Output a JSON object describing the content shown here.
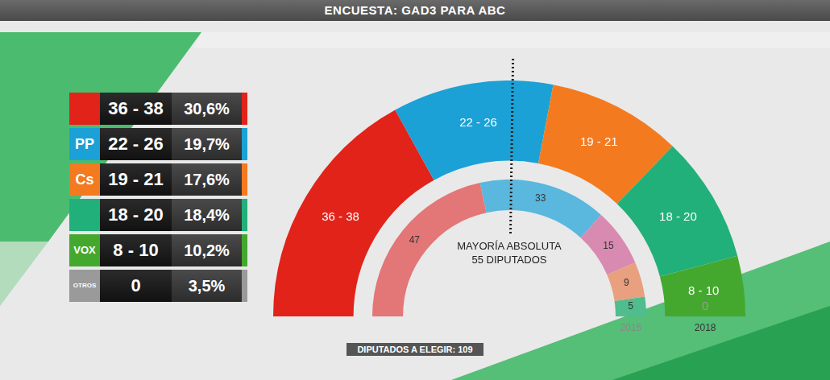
{
  "title": "ENCUESTA: GAD3 PARA ABC",
  "table": {
    "rows": [
      {
        "logo": null,
        "seats": "36 - 38",
        "percent": "30,6%",
        "color": "#e2231a"
      },
      {
        "logo": "PP",
        "seats": "22 - 26",
        "percent": "19,7%",
        "color": "#1ba1d6"
      },
      {
        "logo": "Cs",
        "seats": "19 - 21",
        "percent": "17,6%",
        "color": "#f47a20"
      },
      {
        "logo": null,
        "seats": "18 - 20",
        "percent": "18,4%",
        "color": "#22b07a"
      },
      {
        "logo": "VOX",
        "seats": "8 - 10",
        "percent": "10,2%",
        "color": "#45a82e"
      },
      {
        "logo": "OTROS",
        "seats": "0",
        "percent": "3,5%",
        "color": "#9a9a9a"
      }
    ]
  },
  "chart_data": {
    "type": "doughnut",
    "data_labels": true,
    "series": [
      {
        "name": "2015",
        "values": [
          47,
          33,
          15,
          9,
          5
        ],
        "colors": [
          "#e37676",
          "#5ab7dd",
          "#d98ab0",
          "#e9a07f",
          "#4fbd8e"
        ]
      },
      {
        "name": "2018",
        "low": [
          36,
          22,
          19,
          18,
          8,
          0
        ],
        "high": [
          38,
          26,
          21,
          20,
          10,
          0
        ],
        "value_labels": [
          "36 - 38",
          "22 - 26",
          "19 - 21",
          "18 - 20",
          "8 - 10",
          "0"
        ],
        "colors": [
          "#e2231a",
          "#1ba1d6",
          "#f47a20",
          "#22b07a",
          "#45a82e",
          "#9a9a9a"
        ]
      }
    ],
    "majority": {
      "value": 55,
      "label": [
        "MAYORÍA ABSOLUTA",
        "55 DIPUTADOS"
      ]
    }
  },
  "footer": "DIPUTADOS A ELEGIR: 109"
}
